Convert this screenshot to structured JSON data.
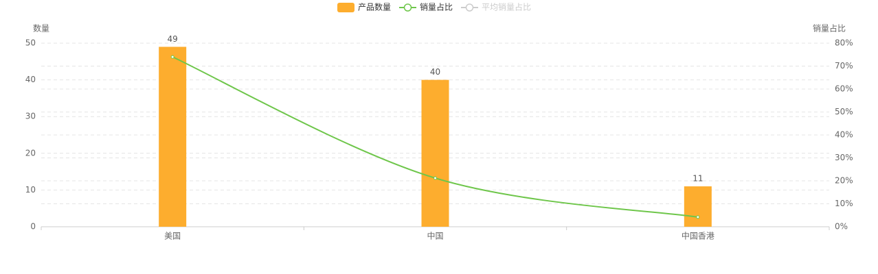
{
  "chart_data": {
    "type": "bar",
    "categories": [
      "美国",
      "中国",
      "中国香港"
    ],
    "y_label": "数量",
    "y2_label": "销量占比",
    "series": [
      {
        "name": "产品数量",
        "type": "bar",
        "color": "#fdad2e",
        "values": [
          49,
          40,
          11
        ]
      },
      {
        "name": "销量占比",
        "type": "line",
        "axis": "y2",
        "color": "#6ec64a",
        "values": [
          74,
          21.2,
          4.2
        ]
      },
      {
        "name": "平均销量占比",
        "type": "line",
        "axis": "y2",
        "color": "#cccccc",
        "values": [
          null,
          null,
          null
        ]
      }
    ],
    "ylim": [
      0,
      50
    ],
    "yticks": [
      0,
      10,
      20,
      30,
      40,
      50
    ],
    "y2lim": [
      0,
      80
    ],
    "y2ticks": [
      {
        "value": 0,
        "label": "0%"
      },
      {
        "value": 10,
        "label": "10%"
      },
      {
        "value": 20,
        "label": "20%"
      },
      {
        "value": 30,
        "label": "30%"
      },
      {
        "value": 40,
        "label": "40%"
      },
      {
        "value": 50,
        "label": "50%"
      },
      {
        "value": 60,
        "label": "60%"
      },
      {
        "value": 70,
        "label": "70%"
      },
      {
        "value": 80,
        "label": "80%"
      }
    ],
    "grid": true,
    "legend": "top"
  }
}
